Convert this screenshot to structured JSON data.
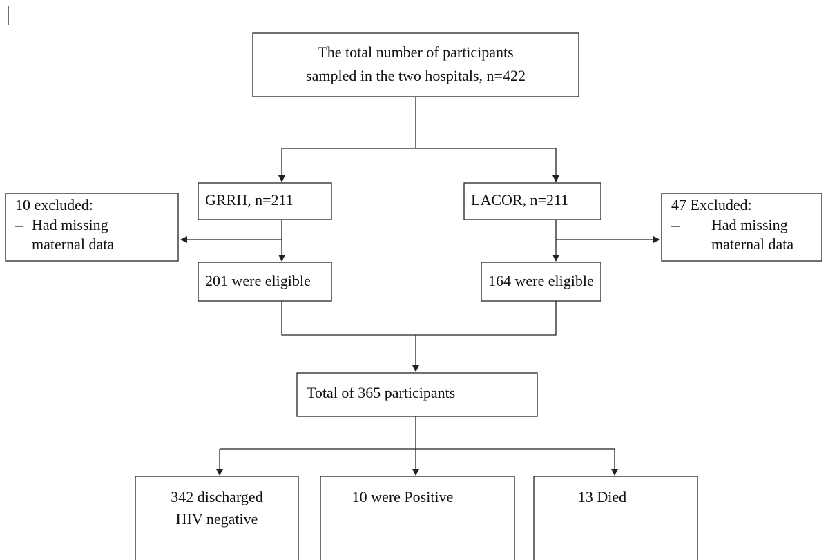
{
  "nodes": [
    {
      "lines": [
        "The total number of participants",
        "sampled in the two hospitals, n=422"
      ]
    },
    {
      "lines": [
        "GRRH, n=211"
      ]
    },
    {
      "lines": [
        "LACOR, n=211"
      ]
    },
    {
      "lines": [
        "201 were eligible"
      ]
    },
    {
      "lines": [
        "164 were eligible"
      ]
    },
    {
      "lines": [
        "Total of 365 participants"
      ]
    },
    {
      "lines": [
        "342 discharged",
        "HIV negative"
      ]
    },
    {
      "lines": [
        "10 were Positive"
      ]
    },
    {
      "lines": [
        "13 Died"
      ]
    }
  ],
  "exclusions": [
    {
      "heading": "10  excluded:",
      "item": [
        "Had missing",
        "maternal data"
      ]
    },
    {
      "heading": "47 Excluded:",
      "item": [
        "Had missing",
        "maternal data"
      ]
    }
  ]
}
